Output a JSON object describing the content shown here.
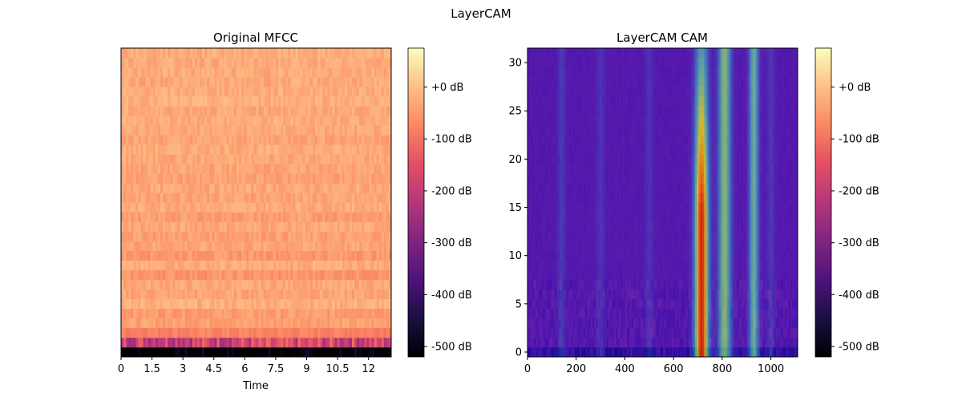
{
  "figure": {
    "title": "LayerCAM"
  },
  "chart_data": [
    {
      "type": "heatmap",
      "title": "Original MFCC",
      "xlabel": "Time",
      "ylabel": "",
      "colormap": "magma",
      "x_ticks": [
        "0",
        "1.5",
        "3",
        "4.5",
        "6",
        "7.5",
        "9",
        "10.5",
        "12"
      ],
      "x_tick_values": [
        0,
        1.5,
        3,
        4.5,
        6,
        7.5,
        9,
        10.5,
        12
      ],
      "xlim": [
        0,
        13.1
      ],
      "n_coefficients": 32,
      "y_ticks_visible": false,
      "colorbar": {
        "ticks": [
          "+0 dB",
          "-100 dB",
          "-200 dB",
          "-300 dB",
          "-400 dB",
          "-500 dB"
        ],
        "tick_values": [
          0,
          -100,
          -200,
          -300,
          -400,
          -500
        ],
        "range": [
          -520,
          75
        ]
      },
      "rows_value_profile_db": [
        -550,
        -180,
        -80,
        -40,
        -45,
        -20,
        -35,
        -30,
        -55,
        -25,
        -50,
        -35,
        -40,
        -30,
        -45,
        -25,
        -35,
        -30,
        -40,
        -35,
        -30,
        -25,
        -35,
        -30,
        -25,
        -30,
        -20,
        -25,
        -30,
        -25,
        -28,
        -25
      ]
    },
    {
      "type": "heatmap",
      "title": "LayerCAM CAM",
      "xlabel": "",
      "ylabel": "",
      "colormap": "magma (MFCC) overlaid with jet (CAM)",
      "x_ticks": [
        "0",
        "200",
        "400",
        "600",
        "800",
        "1000"
      ],
      "x_tick_values": [
        0,
        200,
        400,
        600,
        800,
        1000
      ],
      "xlim": [
        0,
        1110
      ],
      "y_ticks": [
        "0",
        "5",
        "10",
        "15",
        "20",
        "25",
        "30"
      ],
      "y_tick_values": [
        0,
        5,
        10,
        15,
        20,
        25,
        30
      ],
      "ylim": [
        -0.5,
        31.5
      ],
      "cam_peaks": [
        {
          "x": 715,
          "strength": 1.0,
          "width": 28
        },
        {
          "x": 810,
          "strength": 0.55,
          "width": 26
        },
        {
          "x": 930,
          "strength": 0.5,
          "width": 20
        },
        {
          "x": 140,
          "strength": 0.12,
          "width": 16
        },
        {
          "x": 300,
          "strength": 0.1,
          "width": 16
        },
        {
          "x": 500,
          "strength": 0.1,
          "width": 16
        },
        {
          "x": 1000,
          "strength": 0.12,
          "width": 16
        }
      ],
      "colorbar": {
        "ticks": [
          "+0 dB",
          "-100 dB",
          "-200 dB",
          "-300 dB",
          "-400 dB",
          "-500 dB"
        ],
        "tick_values": [
          0,
          -100,
          -200,
          -300,
          -400,
          -500
        ],
        "range": [
          -520,
          75
        ]
      }
    }
  ]
}
